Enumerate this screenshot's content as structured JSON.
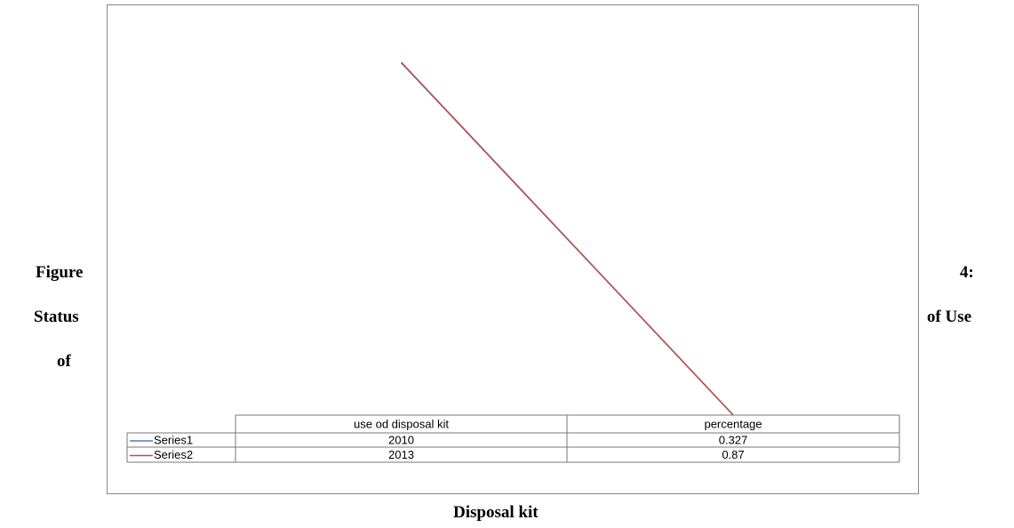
{
  "chart_data": {
    "type": "line",
    "caption": [
      "Figure",
      "4:",
      "Status",
      "of Use",
      "of",
      "Disposal kit"
    ],
    "categories": [
      "use od disposal kit",
      "percentage"
    ],
    "series": [
      {
        "name": "Series1",
        "color": "#4a7ebb",
        "values": [
          2010,
          0.327
        ]
      },
      {
        "name": "Series2",
        "color": "#be4b48",
        "values": [
          2013,
          0.87
        ]
      }
    ]
  }
}
